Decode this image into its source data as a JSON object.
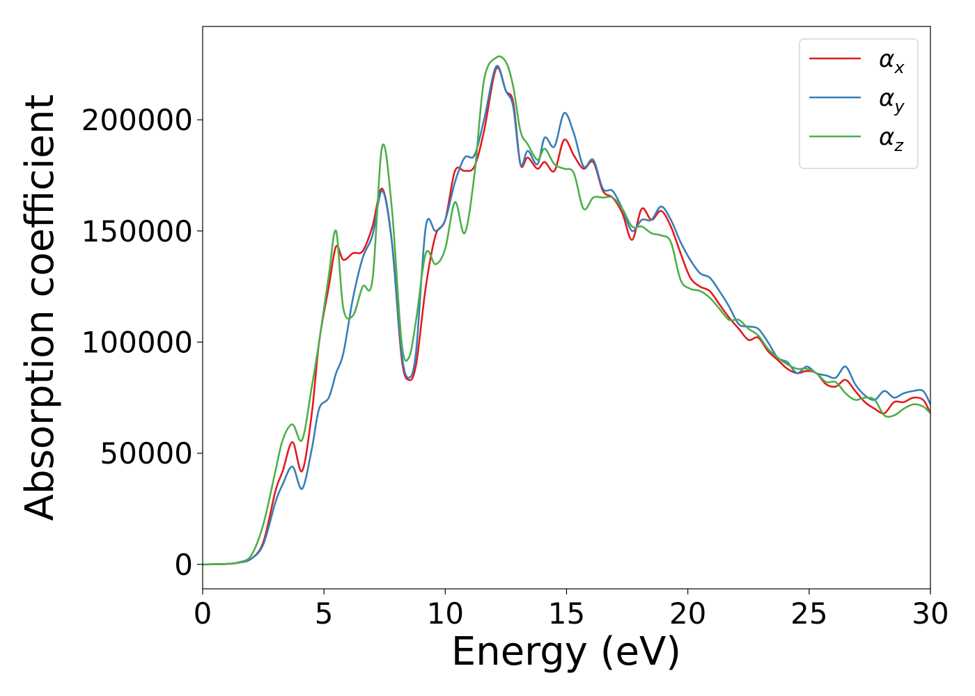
{
  "chart_data": {
    "type": "line",
    "xlabel": "Energy (eV)",
    "ylabel": "Absorption coefficient",
    "xlim": [
      0,
      30
    ],
    "ylim": [
      -11000,
      242000
    ],
    "xticks": [
      0,
      5,
      10,
      15,
      20,
      25,
      30
    ],
    "xtick_labels": [
      "0",
      "5",
      "10",
      "15",
      "20",
      "25",
      "30"
    ],
    "yticks": [
      0,
      50000,
      100000,
      150000,
      200000
    ],
    "ytick_labels": [
      "0",
      "50000",
      "100000",
      "150000",
      "200000"
    ],
    "grid": false,
    "legend_position": "top-right",
    "series": [
      {
        "name": "αx",
        "legend_base": "α",
        "legend_sub": "x",
        "color": "#e41a1c",
        "x": [
          0,
          1,
          1.5,
          2,
          2.5,
          3,
          3.3,
          3.7,
          4.1,
          4.5,
          4.8,
          5.2,
          5.5,
          5.8,
          6.2,
          6.6,
          7.0,
          7.4,
          7.8,
          8.2,
          8.5,
          8.8,
          9.2,
          9.6,
          10.0,
          10.4,
          10.8,
          11.2,
          11.6,
          12.1,
          12.5,
          12.8,
          13.1,
          13.4,
          13.8,
          14.1,
          14.5,
          14.9,
          15.3,
          15.7,
          16.1,
          16.5,
          16.9,
          17.3,
          17.7,
          18.1,
          18.5,
          18.9,
          19.3,
          19.7,
          20.1,
          20.5,
          20.9,
          21.3,
          21.7,
          22.1,
          22.5,
          22.9,
          23.3,
          23.7,
          24.1,
          24.5,
          24.9,
          25.3,
          25.7,
          26.1,
          26.5,
          26.9,
          27.3,
          27.7,
          28.1,
          28.5,
          28.9,
          29.3,
          29.7,
          30
        ],
        "y": [
          0,
          200,
          800,
          2500,
          10000,
          33000,
          42000,
          55000,
          42000,
          68000,
          100000,
          125000,
          143000,
          137000,
          140000,
          141000,
          152000,
          169000,
          145000,
          93000,
          83000,
          90000,
          125000,
          148000,
          155000,
          177000,
          177000,
          179000,
          195000,
          223000,
          213000,
          208000,
          180000,
          183000,
          178000,
          181000,
          177000,
          191000,
          184000,
          178000,
          181000,
          168000,
          165000,
          158000,
          146000,
          160000,
          155000,
          159000,
          152000,
          140000,
          129000,
          125000,
          123000,
          117000,
          111000,
          106000,
          101000,
          102000,
          96000,
          92000,
          88000,
          86000,
          87000,
          86000,
          81000,
          80000,
          83000,
          78000,
          73000,
          70000,
          68000,
          73000,
          73000,
          75000,
          74000,
          68000
        ]
      },
      {
        "name": "αy",
        "legend_base": "α",
        "legend_sub": "y",
        "color": "#377eb8",
        "x": [
          0,
          1,
          1.5,
          2,
          2.5,
          3,
          3.3,
          3.7,
          4.1,
          4.5,
          4.8,
          5.2,
          5.5,
          5.8,
          6.2,
          6.6,
          7.0,
          7.4,
          7.8,
          8.2,
          8.5,
          8.8,
          9.2,
          9.6,
          10.0,
          10.4,
          10.8,
          11.2,
          11.6,
          12.1,
          12.5,
          12.8,
          13.1,
          13.4,
          13.8,
          14.1,
          14.5,
          14.9,
          15.3,
          15.7,
          16.1,
          16.5,
          16.9,
          17.3,
          17.7,
          18.1,
          18.5,
          18.9,
          19.3,
          19.7,
          20.1,
          20.5,
          20.9,
          21.3,
          21.7,
          22.1,
          22.5,
          22.9,
          23.3,
          23.7,
          24.1,
          24.5,
          24.9,
          25.3,
          25.7,
          26.1,
          26.5,
          26.9,
          27.3,
          27.7,
          28.1,
          28.5,
          28.9,
          29.3,
          29.7,
          30
        ],
        "y": [
          0,
          200,
          800,
          2500,
          9000,
          28000,
          36000,
          44000,
          34000,
          52000,
          70000,
          75000,
          86000,
          95000,
          120000,
          138000,
          148000,
          168000,
          145000,
          95000,
          84000,
          96000,
          152000,
          150000,
          155000,
          172000,
          183000,
          184000,
          200000,
          224000,
          213000,
          206000,
          180000,
          186000,
          180000,
          192000,
          188000,
          203000,
          194000,
          179000,
          182000,
          169000,
          168000,
          160000,
          150000,
          155000,
          155000,
          161000,
          155000,
          145000,
          137000,
          131000,
          129000,
          123000,
          116000,
          108000,
          107000,
          106000,
          100000,
          93000,
          91000,
          86000,
          89000,
          86000,
          85000,
          84000,
          89000,
          81000,
          76000,
          74000,
          78000,
          75000,
          77000,
          78000,
          78000,
          72000
        ]
      },
      {
        "name": "αz",
        "legend_base": "α",
        "legend_sub": "z",
        "color": "#4daf4a",
        "x": [
          0,
          1,
          1.5,
          2,
          2.5,
          3,
          3.3,
          3.7,
          4.1,
          4.5,
          4.8,
          5.2,
          5.5,
          5.8,
          6.2,
          6.6,
          7.0,
          7.4,
          7.8,
          8.2,
          8.5,
          8.8,
          9.2,
          9.6,
          10.0,
          10.4,
          10.8,
          11.2,
          11.6,
          12.1,
          12.5,
          12.8,
          13.1,
          13.4,
          13.8,
          14.1,
          14.5,
          14.9,
          15.3,
          15.7,
          16.1,
          16.5,
          16.9,
          17.3,
          17.7,
          18.1,
          18.5,
          18.9,
          19.3,
          19.7,
          20.1,
          20.5,
          20.9,
          21.3,
          21.7,
          22.1,
          22.5,
          22.9,
          23.3,
          23.7,
          24.1,
          24.5,
          24.9,
          25.3,
          25.7,
          26.1,
          26.5,
          26.9,
          27.3,
          27.7,
          28.1,
          28.5,
          28.9,
          29.3,
          29.7,
          30
        ],
        "y": [
          0,
          200,
          1000,
          4000,
          18000,
          42000,
          56000,
          63000,
          56000,
          80000,
          100000,
          130000,
          150000,
          115000,
          112000,
          125000,
          128000,
          188000,
          160000,
          100000,
          93000,
          110000,
          140000,
          135000,
          142000,
          163000,
          149000,
          175000,
          218000,
          228000,
          226000,
          215000,
          195000,
          189000,
          182000,
          187000,
          180000,
          178000,
          176000,
          160000,
          165000,
          165000,
          165000,
          160000,
          152000,
          152000,
          149000,
          148000,
          145000,
          128000,
          124000,
          123000,
          120000,
          115000,
          110000,
          110000,
          106000,
          103000,
          97000,
          93000,
          90000,
          88000,
          88000,
          86000,
          82000,
          82000,
          77000,
          74000,
          75000,
          74000,
          67000,
          67000,
          70000,
          72000,
          71000,
          68000
        ]
      }
    ]
  }
}
